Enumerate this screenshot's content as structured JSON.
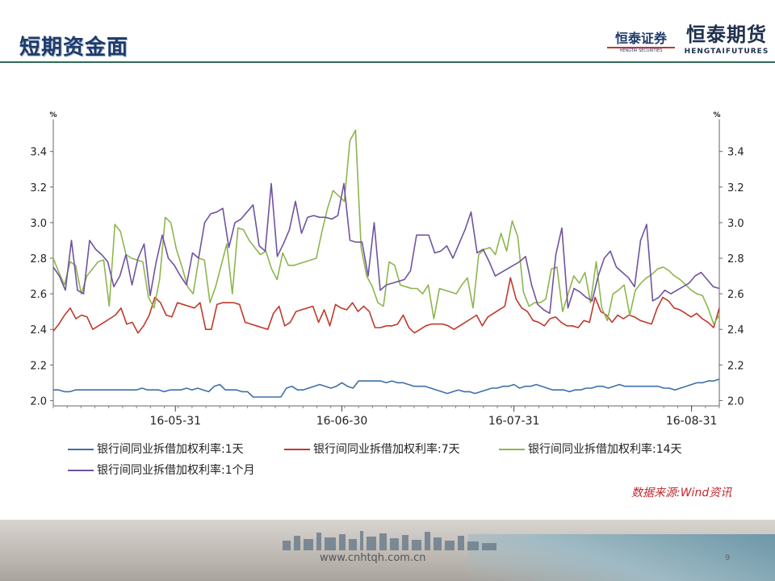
{
  "slide": {
    "title": "短期资金面",
    "logo_securities_cn": "恒泰证券",
    "logo_securities_en": "HENGTAI SECURITIES",
    "logo_futures_cn": "恒泰期货",
    "logo_futures_en": "HENGTAIFUTURES",
    "source": "数据来源:Wind资讯",
    "url": "www.cnhtqh.com.cn",
    "page_number": "9"
  },
  "colors": {
    "title": "#1f3b6b",
    "rule": "#2e6b55",
    "source": "#c0282d"
  },
  "chart_data": {
    "type": "line",
    "y_unit_left": "%",
    "y_unit_right": "%",
    "ylim": [
      1.97,
      3.58
    ],
    "yticks": [
      "2.0",
      "2.2",
      "2.4",
      "2.6",
      "2.8",
      "3.0",
      "3.2",
      "3.4"
    ],
    "xlim": [
      0,
      120
    ],
    "xticks": [
      {
        "label": "16-05-31",
        "x": 22
      },
      {
        "label": "16-06-30",
        "x": 52
      },
      {
        "label": "16-07-31",
        "x": 83
      },
      {
        "label": "16-08-31",
        "x": 115
      }
    ],
    "grid": false,
    "legend_position": "bottom",
    "series": [
      {
        "name": "银行间同业拆借加权利率:1天",
        "color": "#3d6fa8",
        "values": [
          2.06,
          2.06,
          2.05,
          2.05,
          2.06,
          2.06,
          2.06,
          2.06,
          2.06,
          2.06,
          2.06,
          2.06,
          2.06,
          2.06,
          2.06,
          2.06,
          2.07,
          2.06,
          2.06,
          2.06,
          2.05,
          2.06,
          2.06,
          2.06,
          2.07,
          2.06,
          2.07,
          2.06,
          2.05,
          2.08,
          2.09,
          2.06,
          2.06,
          2.06,
          2.05,
          2.05,
          2.02,
          2.02,
          2.02,
          2.02,
          2.02,
          2.02,
          2.07,
          2.08,
          2.06,
          2.06,
          2.07,
          2.08,
          2.09,
          2.08,
          2.07,
          2.08,
          2.1,
          2.08,
          2.07,
          2.11,
          2.11,
          2.11,
          2.11,
          2.11,
          2.1,
          2.11,
          2.1,
          2.1,
          2.09,
          2.08,
          2.08,
          2.08,
          2.07,
          2.06,
          2.05,
          2.04,
          2.05,
          2.06,
          2.05,
          2.05,
          2.04,
          2.05,
          2.06,
          2.07,
          2.07,
          2.08,
          2.08,
          2.09,
          2.07,
          2.08,
          2.08,
          2.09,
          2.08,
          2.07,
          2.06,
          2.06,
          2.06,
          2.05,
          2.06,
          2.06,
          2.07,
          2.07,
          2.08,
          2.08,
          2.07,
          2.08,
          2.09,
          2.08,
          2.08,
          2.08,
          2.08,
          2.08,
          2.08,
          2.08,
          2.07,
          2.07,
          2.06,
          2.07,
          2.08,
          2.09,
          2.1,
          2.1,
          2.11,
          2.11,
          2.12
        ]
      },
      {
        "name": "银行间同业拆借加权利率:7天",
        "color": "#c0392b",
        "values": [
          2.39,
          2.43,
          2.48,
          2.52,
          2.46,
          2.48,
          2.47,
          2.4,
          2.42,
          2.44,
          2.46,
          2.48,
          2.52,
          2.43,
          2.44,
          2.38,
          2.42,
          2.48,
          2.58,
          2.55,
          2.48,
          2.47,
          2.55,
          2.54,
          2.53,
          2.52,
          2.55,
          2.4,
          2.4,
          2.54,
          2.55,
          2.55,
          2.55,
          2.54,
          2.44,
          2.43,
          2.42,
          2.41,
          2.4,
          2.49,
          2.53,
          2.42,
          2.44,
          2.5,
          2.51,
          2.52,
          2.53,
          2.44,
          2.51,
          2.42,
          2.54,
          2.52,
          2.51,
          2.55,
          2.5,
          2.53,
          2.5,
          2.41,
          2.41,
          2.42,
          2.42,
          2.43,
          2.48,
          2.41,
          2.38,
          2.4,
          2.42,
          2.43,
          2.43,
          2.43,
          2.42,
          2.4,
          2.42,
          2.44,
          2.46,
          2.48,
          2.42,
          2.47,
          2.49,
          2.51,
          2.53,
          2.69,
          2.57,
          2.52,
          2.5,
          2.45,
          2.44,
          2.42,
          2.46,
          2.47,
          2.44,
          2.42,
          2.42,
          2.41,
          2.45,
          2.44,
          2.58,
          2.5,
          2.48,
          2.44,
          2.48,
          2.46,
          2.48,
          2.47,
          2.45,
          2.44,
          2.43,
          2.52,
          2.58,
          2.56,
          2.52,
          2.51,
          2.49,
          2.47,
          2.49,
          2.46,
          2.44,
          2.41,
          2.52
        ]
      },
      {
        "name": "银行间同业拆借加权利率:14天",
        "color": "#8eb54f",
        "values": [
          2.8,
          2.72,
          2.65,
          2.78,
          2.76,
          2.6,
          2.7,
          2.74,
          2.78,
          2.79,
          2.53,
          2.99,
          2.95,
          2.82,
          2.8,
          2.79,
          2.78,
          2.58,
          2.52,
          2.68,
          3.03,
          3.0,
          2.85,
          2.75,
          2.64,
          2.6,
          2.8,
          2.79,
          2.55,
          2.64,
          2.76,
          2.88,
          2.6,
          2.97,
          2.96,
          2.9,
          2.86,
          2.82,
          2.84,
          2.74,
          2.68,
          2.83,
          2.76,
          2.76,
          2.77,
          2.78,
          2.79,
          2.8,
          2.95,
          3.08,
          3.18,
          3.15,
          3.12,
          3.46,
          3.52,
          2.86,
          2.7,
          2.64,
          2.55,
          2.53,
          2.78,
          2.76,
          2.65,
          2.64,
          2.63,
          2.63,
          2.6,
          2.65,
          2.46,
          2.63,
          2.62,
          2.61,
          2.6,
          2.65,
          2.69,
          2.52,
          2.82,
          2.85,
          2.86,
          2.82,
          2.94,
          2.84,
          3.01,
          2.92,
          2.61,
          2.53,
          2.55,
          2.55,
          2.57,
          2.74,
          2.75,
          2.5,
          2.6,
          2.7,
          2.66,
          2.72,
          2.55,
          2.78,
          2.52,
          2.45,
          2.6,
          2.62,
          2.65,
          2.48,
          2.62,
          2.66,
          2.69,
          2.71,
          2.74,
          2.75,
          2.73,
          2.7,
          2.68,
          2.65,
          2.62,
          2.6,
          2.59,
          2.52,
          2.43,
          2.48
        ]
      },
      {
        "name": "银行间同业拆借加权利率:1个月",
        "color": "#7153a0",
        "values": [
          2.75,
          2.7,
          2.62,
          2.9,
          2.62,
          2.6,
          2.9,
          2.85,
          2.82,
          2.78,
          2.64,
          2.7,
          2.82,
          2.65,
          2.8,
          2.88,
          2.59,
          2.78,
          2.93,
          2.8,
          2.76,
          2.7,
          2.65,
          2.83,
          2.8,
          3.0,
          3.05,
          3.06,
          3.08,
          2.86,
          3.0,
          3.02,
          3.06,
          3.1,
          2.87,
          2.84,
          3.22,
          2.81,
          2.88,
          2.96,
          3.12,
          2.94,
          3.03,
          3.04,
          3.03,
          3.03,
          3.02,
          3.04,
          3.22,
          2.9,
          2.89,
          2.89,
          2.7,
          3.0,
          2.62,
          2.65,
          2.66,
          2.67,
          2.68,
          2.73,
          2.93,
          2.93,
          2.93,
          2.83,
          2.84,
          2.87,
          2.8,
          2.88,
          2.96,
          3.06,
          2.83,
          2.85,
          2.78,
          2.7,
          2.72,
          2.74,
          2.76,
          2.78,
          2.81,
          2.65,
          2.54,
          2.51,
          2.49,
          2.82,
          2.97,
          2.52,
          2.63,
          2.61,
          2.58,
          2.56,
          2.7,
          2.8,
          2.84,
          2.75,
          2.72,
          2.69,
          2.64,
          2.9,
          2.99,
          2.56,
          2.58,
          2.62,
          2.6,
          2.62,
          2.64,
          2.66,
          2.7,
          2.72,
          2.68,
          2.64,
          2.63
        ]
      }
    ]
  }
}
